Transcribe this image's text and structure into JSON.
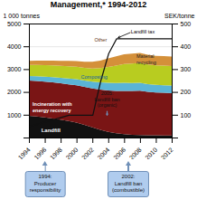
{
  "chart_data": {
    "type": "area",
    "stacked": true,
    "title": "Management,* 1994-2012",
    "ylabel": "1 000 tonnes",
    "y2label": "SEK/tonne",
    "x": [
      1994,
      1995,
      1996,
      1997,
      1998,
      1999,
      2000,
      2001,
      2002,
      2003,
      2004,
      2005,
      2006,
      2007,
      2008,
      2009,
      2010,
      2011,
      2012
    ],
    "xlim": [
      1994,
      2012
    ],
    "xticks": [
      1994,
      1996,
      1998,
      2000,
      2002,
      2004,
      2006,
      2008,
      2010,
      2012
    ],
    "ylim": [
      0,
      5000
    ],
    "yticks": [
      {
        "value": 0,
        "label": ""
      },
      1000,
      2000,
      3000,
      4000,
      5000
    ],
    "y2lim": [
      0,
      500
    ],
    "y2ticks": [
      {
        "value": 0,
        "label": ""
      },
      100,
      200,
      300,
      400,
      500
    ],
    "grid": true,
    "series": [
      {
        "name": "Landfill",
        "color": "#111111",
        "values": [
          950,
          920,
          880,
          830,
          780,
          720,
          650,
          560,
          450,
          340,
          250,
          190,
          150,
          120,
          110,
          100,
          95,
          90,
          85
        ]
      },
      {
        "name": "Incineration with\nenergy recovery",
        "color": "#7a1515",
        "values": [
          1550,
          1560,
          1570,
          1590,
          1600,
          1610,
          1640,
          1660,
          1700,
          1760,
          1810,
          1850,
          1890,
          1920,
          1940,
          1900,
          1880,
          1870,
          1860
        ]
      },
      {
        "name": "Composting",
        "color": "#5ab4d6",
        "values": [
          200,
          210,
          220,
          230,
          240,
          260,
          270,
          280,
          300,
          320,
          340,
          355,
          360,
          355,
          350,
          340,
          335,
          335,
          335
        ]
      },
      {
        "name": "Material\nrecycling",
        "color": "#b8cc20",
        "values": [
          480,
          490,
          500,
          510,
          525,
          535,
          545,
          560,
          580,
          630,
          700,
          760,
          820,
          850,
          870,
          860,
          855,
          855,
          855
        ]
      },
      {
        "name": "Other",
        "color": "#d4903a",
        "values": [
          180,
          190,
          200,
          210,
          220,
          235,
          250,
          260,
          290,
          320,
          370,
          410,
          430,
          440,
          445,
          430,
          420,
          420,
          420
        ]
      },
      {
        "name": "Landfill tax",
        "type": "line",
        "axis": "y2",
        "color": "#111111",
        "values": [
          50,
          60,
          70,
          80,
          90,
          100,
          100,
          100,
          100,
          250,
          370,
          435,
          435,
          435,
          435,
          435,
          435,
          435,
          435
        ]
      }
    ],
    "annotations": [
      {
        "text": "2005:\nLandfill ban\n(organic)",
        "color": "#b0ccee"
      },
      {
        "text": "1994:\nProducer\nresponsibility",
        "color": "#b0ccee"
      },
      {
        "text": "2002:\nLandfill ban\n(combustible)",
        "color": "#b0ccee"
      }
    ]
  }
}
